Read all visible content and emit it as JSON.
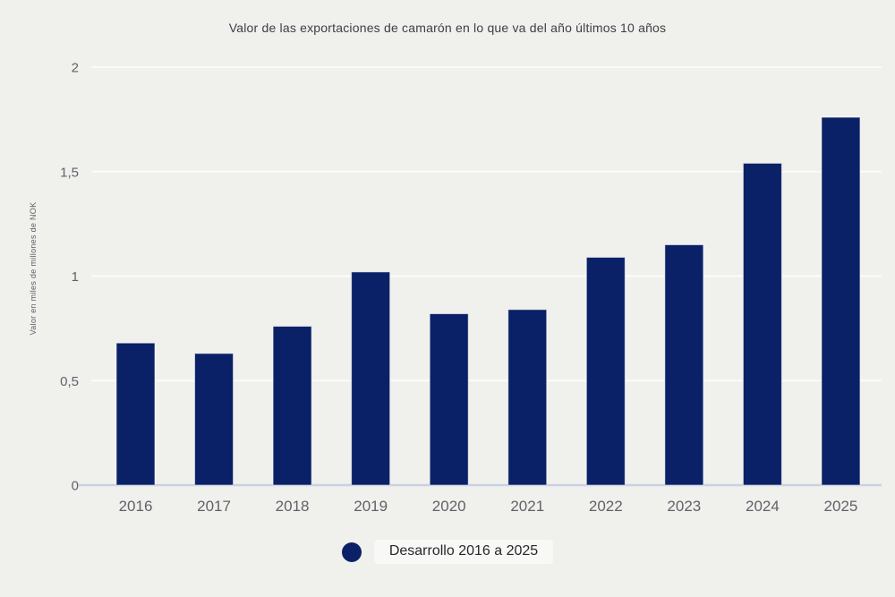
{
  "chart_data": {
    "type": "bar",
    "title": "Valor de las exportaciones de camarón en lo que va del año últimos 10 años",
    "ylabel": "Valor en miles de millones de NOK",
    "xlabel": "",
    "legend": "Desarrollo 2016 a 2025",
    "legend_position": "bottom-center",
    "categories": [
      "2016",
      "2017",
      "2018",
      "2019",
      "2020",
      "2021",
      "2022",
      "2023",
      "2024",
      "2025"
    ],
    "values": [
      0.68,
      0.63,
      0.76,
      1.02,
      0.82,
      0.84,
      1.09,
      1.15,
      1.54,
      1.76
    ],
    "ylim": [
      0,
      2
    ],
    "yticks": [
      {
        "value": 0,
        "label": "0"
      },
      {
        "value": 0.5,
        "label": "0,5"
      },
      {
        "value": 1,
        "label": "1"
      },
      {
        "value": 1.5,
        "label": "1,5"
      },
      {
        "value": 2,
        "label": "2"
      }
    ],
    "grid": true,
    "decimal_separator": ",",
    "colors": {
      "bar": "#0a2167",
      "background": "#f0f0ed",
      "gridline": "#fbfbf9",
      "baseline": "#c9d1e3",
      "tick_text": "#5f6368",
      "title_text": "#3c4043",
      "legend_text": "#26282b",
      "legend_pill_bg": "#f8f8f6"
    }
  }
}
